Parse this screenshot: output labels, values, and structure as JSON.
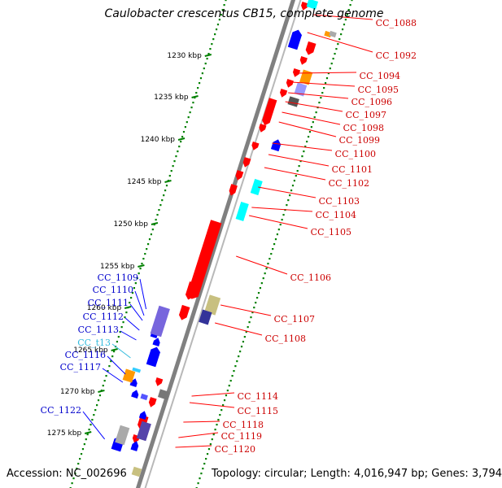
{
  "map": {
    "title": "Caulobacter crescentus CB15, complete genome",
    "accession": "Accession: NC_002696",
    "summary": "Topology: circular; Length: 4,016,947 bp; Genes: 3,794"
  },
  "colors": {
    "forward": "#ff0000",
    "reverse": "#0000ff",
    "trna": "#00ffff",
    "backbone": "#808080",
    "ticks": "#008000",
    "label_forward": "#cc0000",
    "label_reverse": "#0000cc",
    "label_trna": "#33bbdd"
  },
  "kbp_ticks": [
    "1230 kbp",
    "1235 kbp",
    "1240 kbp",
    "1245 kbp",
    "1250 kbp",
    "1255 kbp",
    "1260 kbp",
    "1265 kbp",
    "1270 kbp",
    "1275 kbp"
  ],
  "right_labels": [
    "CC_1088",
    "CC_1092",
    "CC_1094",
    "CC_1095",
    "CC_1096",
    "CC_1097",
    "CC_1098",
    "CC_1099",
    "CC_1100",
    "CC_1101",
    "CC_1102",
    "CC_1103",
    "CC_1104",
    "CC_1105",
    "CC_1106",
    "CC_1107",
    "CC_1108",
    "CC_1114",
    "CC_1115",
    "CC_1118",
    "CC_1119",
    "CC_1120"
  ],
  "left_labels": [
    "CC_1109",
    "CC_1110",
    "CC_1111",
    "CC_1112",
    "CC_1113",
    "CC_t13",
    "CC_1116",
    "CC_1117",
    "CC_1122"
  ]
}
